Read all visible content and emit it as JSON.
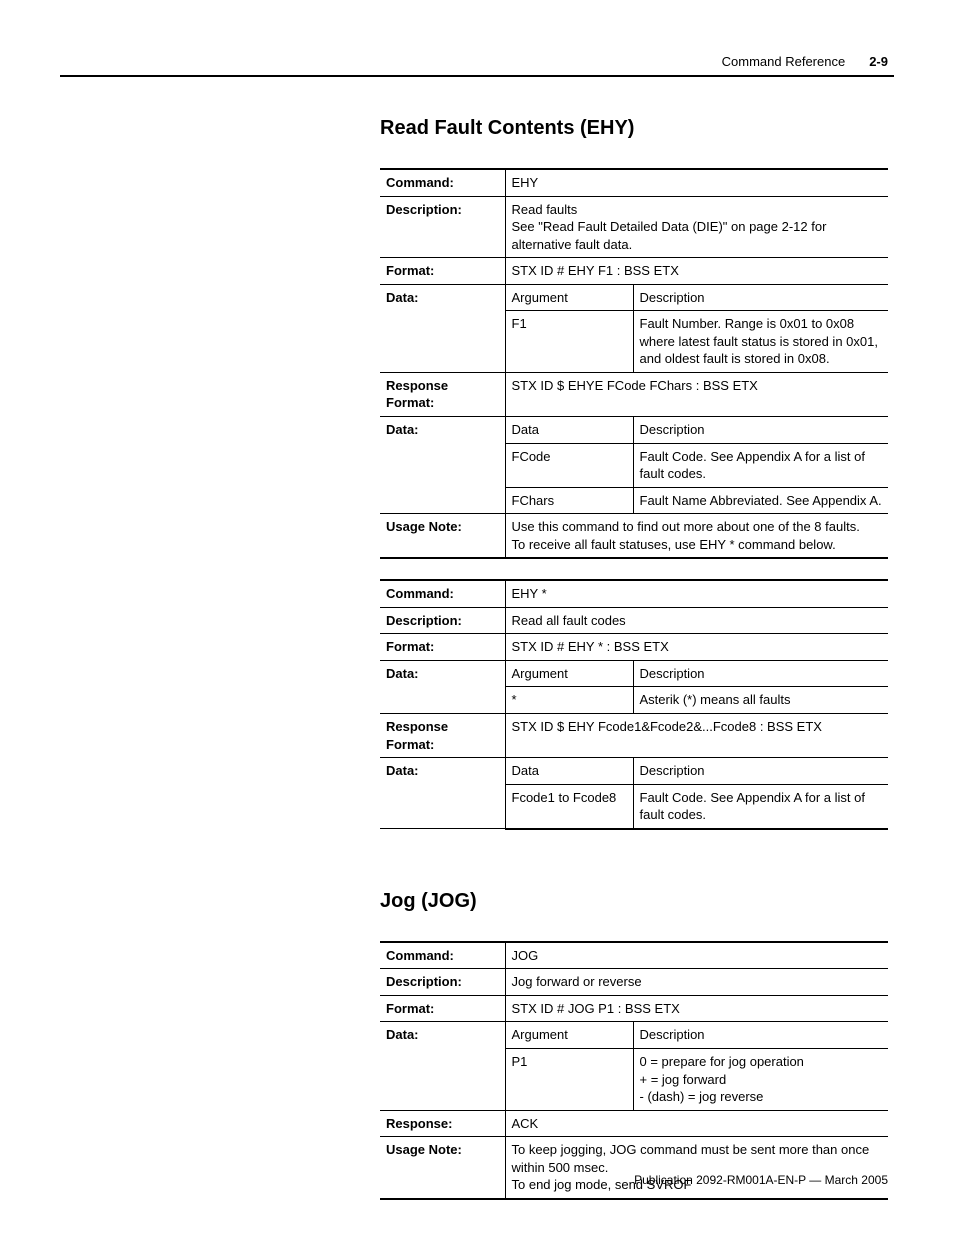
{
  "header": {
    "section": "Command Reference",
    "page": "2-9"
  },
  "footer": "Publication 2092-RM001A-EN-P — March 2005",
  "sections": {
    "ehy": {
      "title": "Read Fault Contents (EHY)",
      "t1": {
        "command_lbl": "Command:",
        "command": "EHY",
        "desc_lbl": "Description:",
        "desc_l1": "Read faults",
        "desc_l2": "See \"Read Fault Detailed Data (DIE)\" on page 2-12 for alternative fault data.",
        "format_lbl": "Format:",
        "format": "STX ID # EHY F1 : BSS ETX",
        "data_lbl": "Data:",
        "arg_h": "Argument",
        "desc_h": "Description",
        "arg1": "F1",
        "arg1_desc": "Fault Number. Range is 0x01 to 0x08 where latest fault status is stored in 0x01, and oldest fault is stored in 0x08.",
        "resp_lbl": "Response Format:",
        "resp": "STX ID $ EHYE FCode FChars : BSS ETX",
        "data2_lbl": "Data:",
        "data_h": "Data",
        "desc2_h": "Description",
        "d1": "FCode",
        "d1_desc": "Fault Code. See Appendix A for a list of fault codes.",
        "d2": "FChars",
        "d2_desc": "Fault Name Abbreviated. See Appendix A.",
        "usage_lbl": "Usage Note:",
        "usage_l1": "Use this command to find out more about one of the 8 faults.",
        "usage_l2": "To receive all fault statuses, use EHY * command below."
      },
      "t2": {
        "command_lbl": "Command:",
        "command": "EHY *",
        "desc_lbl": "Description:",
        "desc": "Read all fault codes",
        "format_lbl": "Format:",
        "format": "STX ID # EHY * : BSS ETX",
        "data_lbl": "Data:",
        "arg_h": "Argument",
        "desc_h": "Description",
        "arg1": "*",
        "arg1_desc": "Asterik (*) means all faults",
        "resp_lbl": "Response Format:",
        "resp": "STX ID $ EHY Fcode1&Fcode2&...Fcode8 : BSS ETX",
        "data2_lbl": "Data:",
        "data_h": "Data",
        "desc2_h": "Description",
        "d1": "Fcode1 to Fcode8",
        "d1_desc": "Fault Code. See Appendix A for a list of fault codes."
      }
    },
    "jog": {
      "title": "Jog (JOG)",
      "t1": {
        "command_lbl": "Command:",
        "command": "JOG",
        "desc_lbl": "Description:",
        "desc": "Jog forward or reverse",
        "format_lbl": "Format:",
        "format": "STX ID # JOG P1 : BSS ETX",
        "data_lbl": "Data:",
        "arg_h": "Argument",
        "desc_h": "Description",
        "arg1": "P1",
        "arg1_desc_l1": "0 = prepare for jog operation",
        "arg1_desc_l2": "+ = jog forward",
        "arg1_desc_l3": "- (dash) = jog reverse",
        "resp_lbl": "Response:",
        "resp": "ACK",
        "usage_lbl": "Usage Note:",
        "usage_l1": "To keep jogging, JOG command must be sent more than once within 500 msec.",
        "usage_l2": "To end jog mode, send SVROF"
      }
    }
  }
}
